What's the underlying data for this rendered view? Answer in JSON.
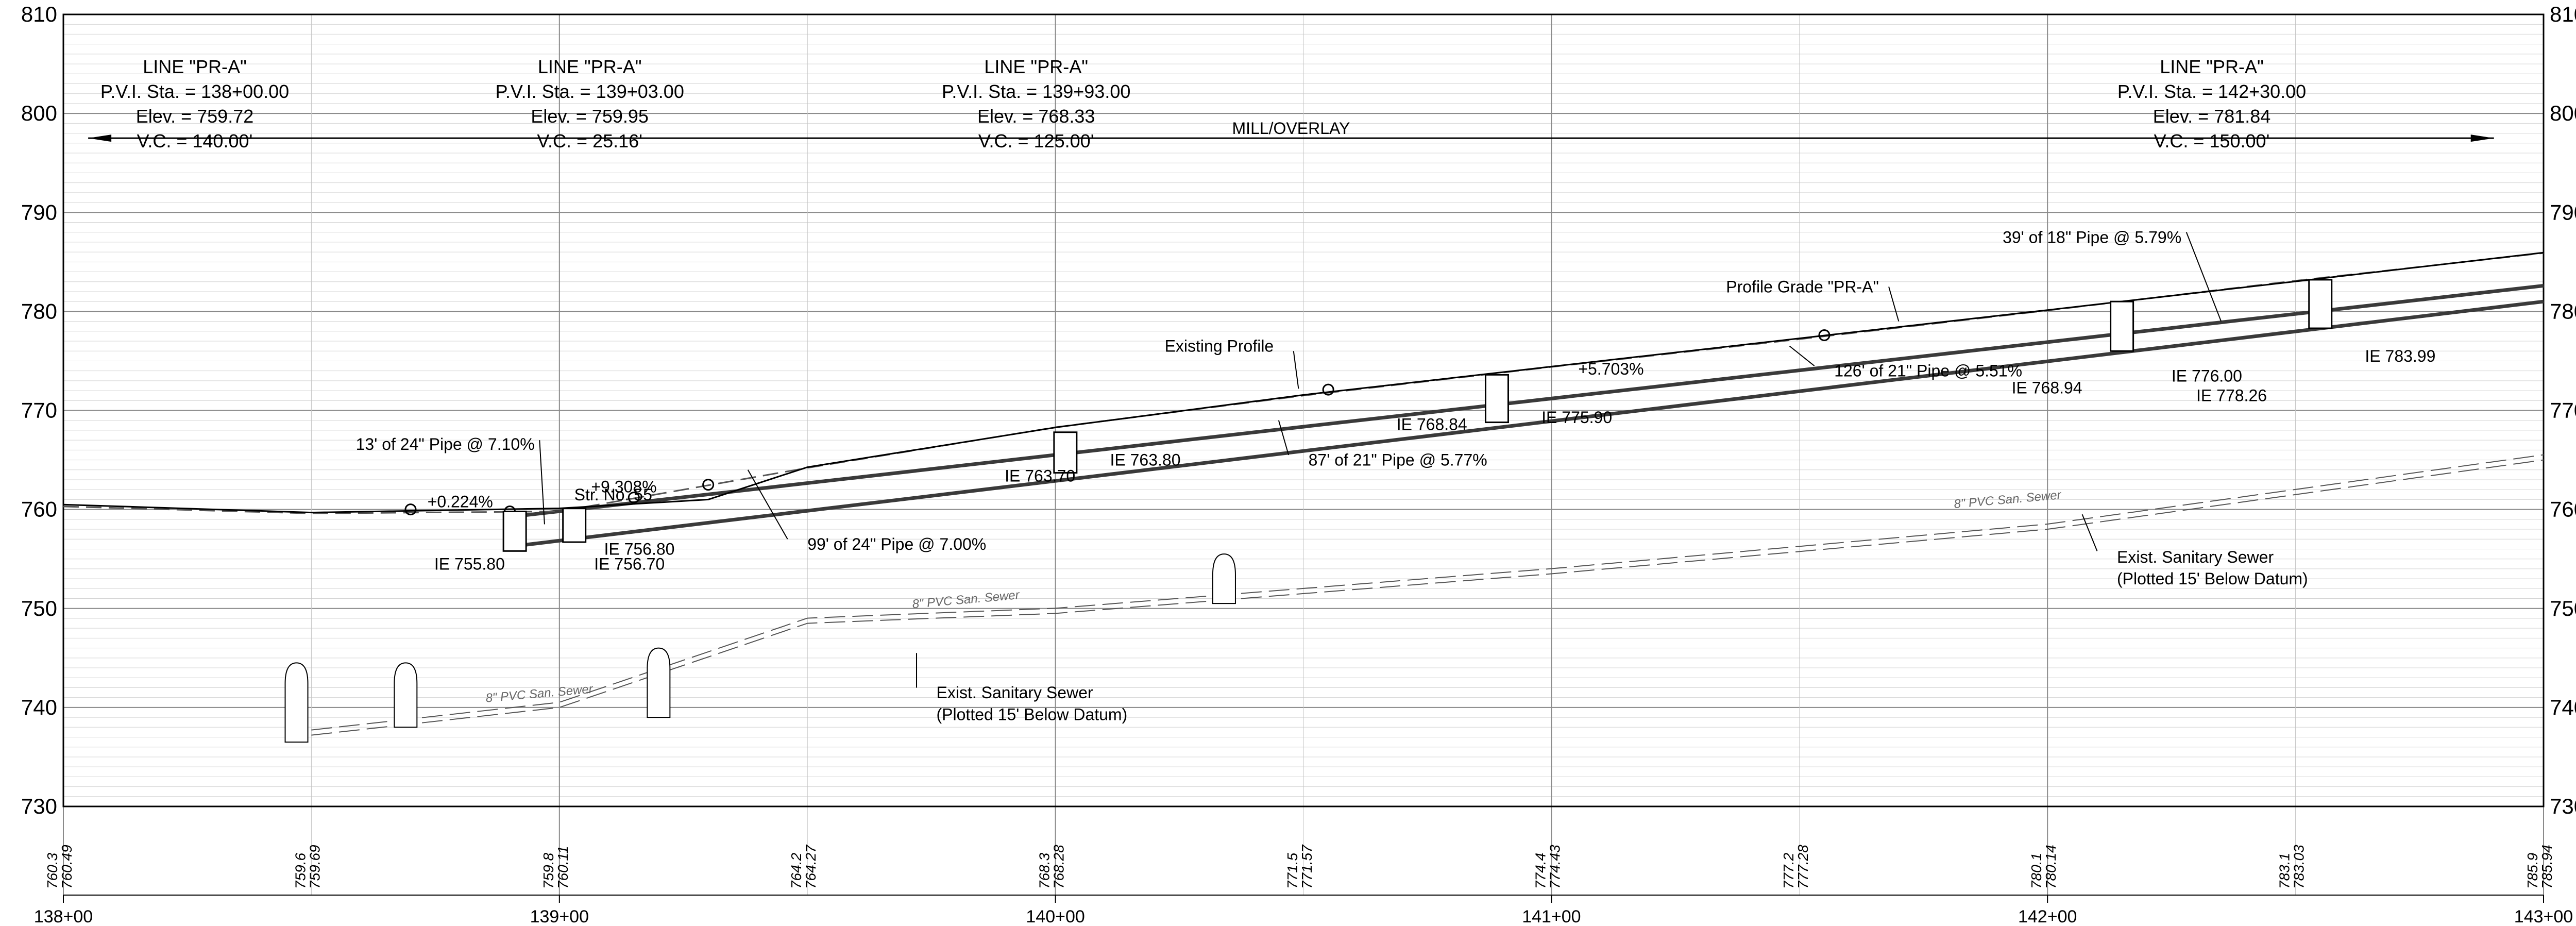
{
  "chart_data": {
    "type": "profile",
    "x_range_sta": [
      13800,
      14300
    ],
    "y_range_elev": [
      730,
      810
    ],
    "elevation_ticks": [
      "730",
      "740",
      "750",
      "760",
      "770",
      "780",
      "790",
      "800",
      "810"
    ],
    "station_ticks": [
      {
        "sta": 13800,
        "label": "138+00"
      },
      {
        "sta": 13900,
        "label": "139+00"
      },
      {
        "sta": 14000,
        "label": "140+00"
      },
      {
        "sta": 14100,
        "label": "141+00"
      },
      {
        "sta": 14200,
        "label": "142+00"
      },
      {
        "sta": 14300,
        "label": "143+00"
      }
    ],
    "ground_values": [
      {
        "sta": 13800,
        "existing": "760.3",
        "proposed": "760.49"
      },
      {
        "sta": 13850,
        "existing": "759.6",
        "proposed": "759.69"
      },
      {
        "sta": 13900,
        "existing": "759.8",
        "proposed": "760.11"
      },
      {
        "sta": 13950,
        "existing": "764.2",
        "proposed": "764.27"
      },
      {
        "sta": 14000,
        "existing": "768.3",
        "proposed": "768.28"
      },
      {
        "sta": 14050,
        "existing": "771.5",
        "proposed": "771.57"
      },
      {
        "sta": 14100,
        "existing": "774.4",
        "proposed": "774.43"
      },
      {
        "sta": 14150,
        "existing": "777.2",
        "proposed": "777.28"
      },
      {
        "sta": 14200,
        "existing": "780.1",
        "proposed": "780.14"
      },
      {
        "sta": 14250,
        "existing": "783.1",
        "proposed": "783.03"
      },
      {
        "sta": 14300,
        "existing": "785.9",
        "proposed": "785.94"
      }
    ],
    "pvis": [
      {
        "sta": 13800,
        "line": "LINE \"PR-A\"",
        "station": "P.V.I. Sta. = 138+00.00",
        "elev": "Elev. = 759.72",
        "vc": "V.C. = 140.00'"
      },
      {
        "sta": 13903,
        "line": "LINE \"PR-A\"",
        "station": "P.V.I. Sta. = 139+03.00",
        "elev": "Elev. = 759.95",
        "vc": "V.C. = 25.16'"
      },
      {
        "sta": 13993,
        "line": "LINE \"PR-A\"",
        "station": "P.V.I. Sta. = 139+93.00",
        "elev": "Elev. = 768.33",
        "vc": "V.C. = 125.00'"
      },
      {
        "sta": 14230,
        "line": "LINE \"PR-A\"",
        "station": "P.V.I. Sta. = 142+30.00",
        "elev": "Elev. = 781.84",
        "vc": "V.C. = 150.00'"
      }
    ],
    "proposed_grade": [
      [
        13800,
        760.49
      ],
      [
        13850,
        759.69
      ],
      [
        13900,
        760.11
      ],
      [
        13930,
        761.0
      ],
      [
        13950,
        764.27
      ],
      [
        14000,
        768.28
      ],
      [
        14050,
        771.57
      ],
      [
        14100,
        774.43
      ],
      [
        14150,
        777.28
      ],
      [
        14200,
        780.14
      ],
      [
        14250,
        783.03
      ],
      [
        14300,
        785.94
      ]
    ],
    "existing_grade": [
      [
        13800,
        760.3
      ],
      [
        13850,
        759.6
      ],
      [
        13900,
        759.8
      ],
      [
        13950,
        764.2
      ],
      [
        14000,
        768.3
      ],
      [
        14050,
        771.5
      ],
      [
        14100,
        774.4
      ],
      [
        14150,
        777.2
      ],
      [
        14200,
        780.1
      ],
      [
        14250,
        783.1
      ],
      [
        14300,
        785.9
      ]
    ],
    "storm_pipe": {
      "top": [
        [
          13891,
          759.3
        ],
        [
          14300,
          782.6
        ]
      ],
      "bottom": [
        [
          13891,
          756.3
        ],
        [
          14300,
          781.0
        ]
      ]
    },
    "sanitary_sewers": [
      {
        "points": [
          [
            13850,
            737.2
          ],
          [
            13900,
            740.0
          ],
          [
            13950,
            748.5
          ],
          [
            14000,
            749.5
          ],
          [
            14100,
            753.5
          ],
          [
            14200,
            758.0
          ],
          [
            14300,
            765.0
          ]
        ],
        "label": "8\" PVC San. Sewer",
        "label_sta": 13896,
        "label_elev": 741.0
      },
      {
        "points": [
          [
            13850,
            737.2
          ],
          [
            13900,
            740.0
          ],
          [
            13950,
            748.5
          ],
          [
            14000,
            749.5
          ],
          [
            14100,
            753.5
          ],
          [
            14200,
            758.0
          ],
          [
            14300,
            765.0
          ]
        ],
        "label": "8\" PVC San. Sewer",
        "label_sta": 13982,
        "label_elev": 750.5
      },
      {
        "points": [
          [
            13850,
            737.2
          ],
          [
            13900,
            740.0
          ],
          [
            13950,
            748.5
          ],
          [
            14000,
            749.5
          ],
          [
            14100,
            753.5
          ],
          [
            14200,
            758.0
          ],
          [
            14300,
            765.0
          ]
        ],
        "label": "8\" PVC San. Sewer",
        "label_sta": 14192,
        "label_elev": 760.6
      }
    ],
    "structures": [
      {
        "sta": 13891,
        "top": 759.8,
        "bottom": 755.8
      },
      {
        "sta": 13903,
        "top": 760.1,
        "bottom": 756.7
      },
      {
        "sta": 14002,
        "top": 767.8,
        "bottom": 763.7
      },
      {
        "sta": 14089,
        "top": 773.6,
        "bottom": 768.8
      },
      {
        "sta": 14215,
        "top": 781.0,
        "bottom": 776.0
      },
      {
        "sta": 14255,
        "top": 783.2,
        "bottom": 778.3
      }
    ],
    "manholes": [
      {
        "sta": 13847,
        "top": 744.5,
        "bottom": 736.5
      },
      {
        "sta": 13869,
        "top": 744.5,
        "bottom": 738.0
      },
      {
        "sta": 13920,
        "top": 746.0,
        "bottom": 739.0
      },
      {
        "sta": 14034,
        "top": 755.5,
        "bottom": 750.5
      }
    ],
    "annotations": [
      {
        "text": "Existing Profile",
        "sta": 14044,
        "elev": 776.5,
        "anchor": "end",
        "leader_from": [
          14048,
          776.0
        ],
        "leader_to": [
          14049,
          772.2
        ]
      },
      {
        "text": "Profile Grade \"PR-A\"",
        "sta": 14166,
        "elev": 782.5,
        "anchor": "end",
        "leader_from": [
          14168,
          782.5
        ],
        "leader_to": [
          14170,
          779.0
        ]
      },
      {
        "text": "39' of 18\" Pipe @ 5.79%",
        "sta": 14227,
        "elev": 787.5,
        "anchor": "end",
        "leader_from": [
          14228,
          788.0
        ],
        "leader_to": [
          14235,
          779.0
        ]
      },
      {
        "text": "+5.703%",
        "sta": 14112,
        "elev": 774.2,
        "anchor": "middle"
      },
      {
        "text": "+0.224%",
        "sta": 13880,
        "elev": 760.8,
        "anchor": "middle"
      },
      {
        "text": "+9.308%",
        "sta": 13913,
        "elev": 762.3,
        "anchor": "middle"
      },
      {
        "text": "13' of 24\" Pipe @ 7.10%",
        "sta": 13895,
        "elev": 766.6,
        "anchor": "end",
        "leader_from": [
          13896,
          767.0
        ],
        "leader_to": [
          13897,
          758.5
        ]
      },
      {
        "text": "Str. No. 55",
        "sta": 13903,
        "elev": 761.5,
        "anchor": "start"
      },
      {
        "text": "IE 755.80",
        "sta": 13889,
        "elev": 754.5,
        "anchor": "end"
      },
      {
        "text": "IE 756.80",
        "sta": 13909,
        "elev": 756.0,
        "anchor": "start"
      },
      {
        "text": "IE 756.70",
        "sta": 13907,
        "elev": 754.5,
        "anchor": "start"
      },
      {
        "text": "99' of 24\" Pipe @ 7.00%",
        "sta": 13950,
        "elev": 756.5,
        "anchor": "start",
        "leader_from": [
          13946,
          757.0
        ],
        "leader_to": [
          13938,
          764.0
        ]
      },
      {
        "text": "IE 763.70",
        "sta": 14004,
        "elev": 763.4,
        "anchor": "end"
      },
      {
        "text": "IE 763.80",
        "sta": 14011,
        "elev": 765.0,
        "anchor": "start"
      },
      {
        "text": "87' of 21\" Pipe @ 5.77%",
        "sta": 14051,
        "elev": 765.0,
        "anchor": "start",
        "leader_from": [
          14047,
          765.5
        ],
        "leader_to": [
          14045,
          769.0
        ]
      },
      {
        "text": "IE 768.84",
        "sta": 14083,
        "elev": 768.6,
        "anchor": "end"
      },
      {
        "text": "IE 775.90",
        "sta": 14098,
        "elev": 769.3,
        "anchor": "start"
      },
      {
        "text": "126' of 21\" Pipe @ 5.51%",
        "sta": 14157,
        "elev": 774.0,
        "anchor": "start",
        "leader_from": [
          14153,
          774.5
        ],
        "leader_to": [
          14148,
          776.5
        ]
      },
      {
        "text": "IE 768.94",
        "sta": 14207,
        "elev": 772.3,
        "anchor": "end"
      },
      {
        "text": "IE 776.00",
        "sta": 14225,
        "elev": 773.5,
        "anchor": "start"
      },
      {
        "text": "IE 778.26",
        "sta": 14230,
        "elev": 771.5,
        "anchor": "start"
      },
      {
        "text": "IE 783.99",
        "sta": 14264,
        "elev": 775.5,
        "anchor": "start"
      },
      {
        "text": "Exist. Sanitary Sewer",
        "sta": 13976,
        "elev": 741.5,
        "anchor": "start",
        "leader_from": [
          13972,
          742.0
        ],
        "leader_to": [
          13972,
          745.5
        ]
      },
      {
        "text": "(Plotted 15' Below Datum)",
        "sta": 13976,
        "elev": 739.3,
        "anchor": "start"
      },
      {
        "text": "Exist. Sanitary Sewer",
        "sta": 14214,
        "elev": 755.2,
        "anchor": "start",
        "leader_from": [
          14210,
          755.8
        ],
        "leader_to": [
          14207,
          759.5
        ]
      },
      {
        "text": "(Plotted 15' Below Datum)",
        "sta": 14214,
        "elev": 753.0,
        "anchor": "start"
      }
    ],
    "mill_overlay": {
      "label": "MILL/OVERLAY",
      "elev": 797.5,
      "from_sta": 13805,
      "to_sta": 14290
    }
  }
}
